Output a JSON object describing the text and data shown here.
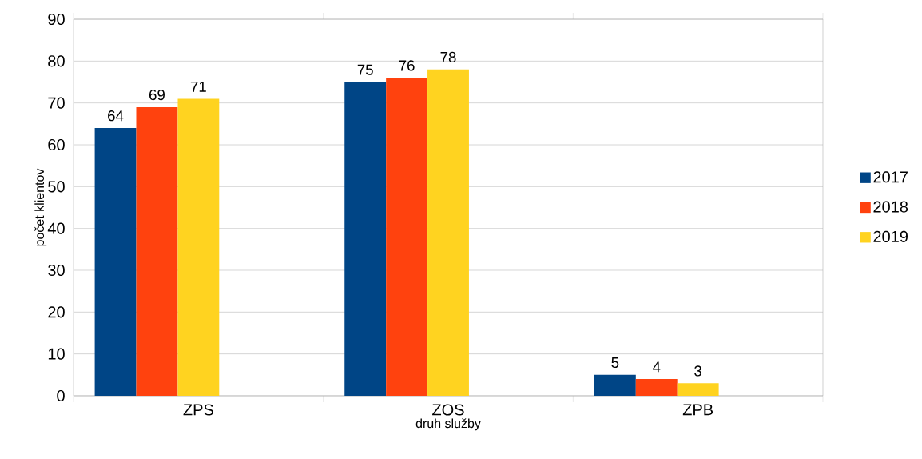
{
  "chart_data": {
    "type": "bar",
    "xlabel": "druh služby",
    "ylabel": "počet klientov",
    "categories": [
      "ZPS",
      "ZOS",
      "ZPB"
    ],
    "series": [
      {
        "name": "2017",
        "color": "#004586",
        "values": [
          64,
          75,
          5
        ]
      },
      {
        "name": "2018",
        "color": "#ff420e",
        "values": [
          69,
          76,
          4
        ]
      },
      {
        "name": "2019",
        "color": "#ffd320",
        "values": [
          71,
          78,
          3
        ]
      },
      {
        "color": "#579d1c",
        "values": [
          null,
          null,
          null
        ]
      },
      {
        "color": "#7e0021",
        "values": [
          null,
          null,
          null
        ]
      }
    ],
    "ylim": [
      0,
      90
    ],
    "yticks": [
      0,
      10,
      20,
      30,
      40,
      50,
      60,
      70,
      80,
      90
    ],
    "grid": "y",
    "legend": "right",
    "data_labels": true
  }
}
